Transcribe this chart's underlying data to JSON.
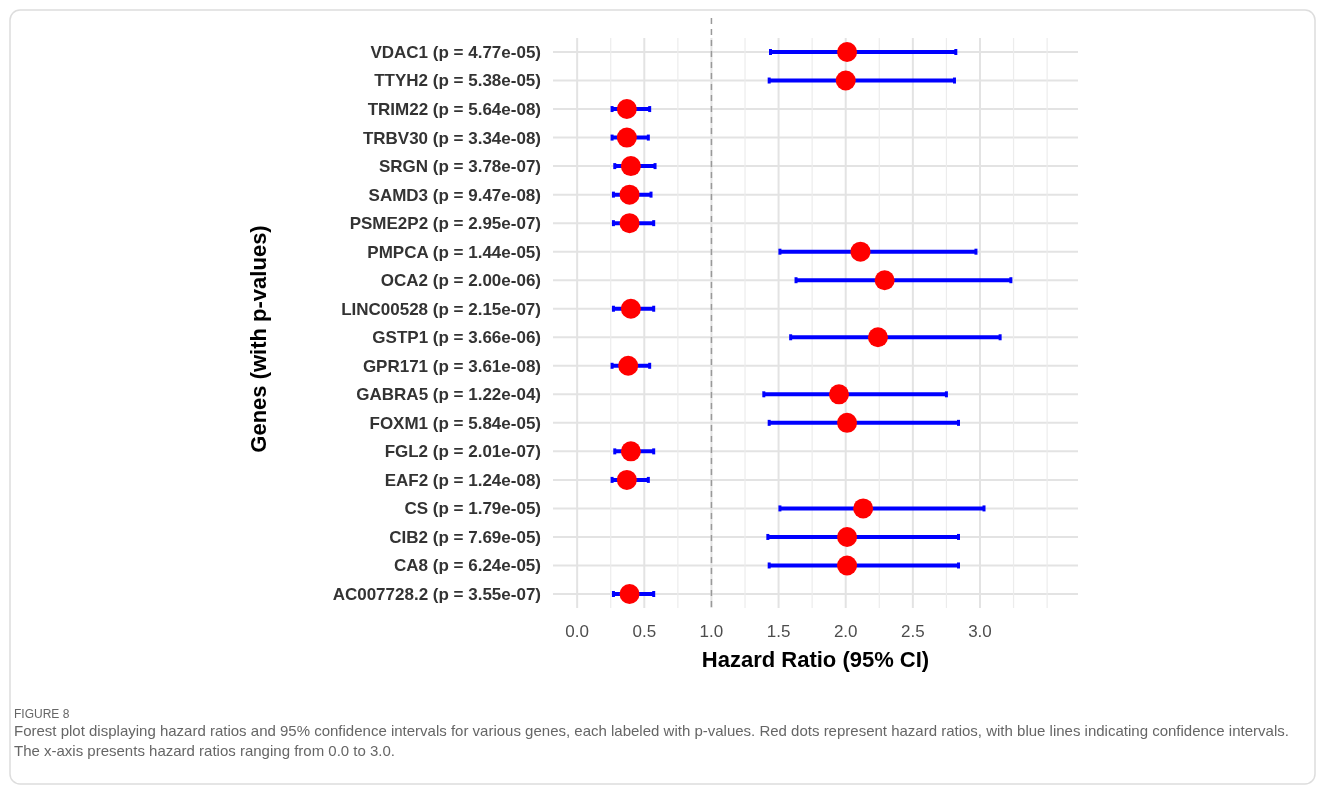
{
  "chart_data": {
    "type": "scatter",
    "orientation": "horizontal",
    "xlabel": "Hazard Ratio (95% CI)",
    "ylabel": "Genes (with p-values)",
    "categories": [
      "VDAC1 (p = 4.77e-05)",
      "TTYH2 (p = 5.38e-05)",
      "TRIM22 (p = 5.64e-08)",
      "TRBV30 (p = 3.34e-08)",
      "SRGN (p = 3.78e-07)",
      "SAMD3 (p = 9.47e-08)",
      "PSME2P2 (p = 2.95e-07)",
      "PMPCA (p = 1.44e-05)",
      "OCA2 (p = 2.00e-06)",
      "LINC00528 (p = 2.15e-07)",
      "GSTP1 (p = 3.66e-06)",
      "GPR171 (p = 3.61e-08)",
      "GABRA5 (p = 1.22e-04)",
      "FOXM1 (p = 5.84e-05)",
      "FGL2 (p = 2.01e-07)",
      "EAF2 (p = 1.24e-08)",
      "CS (p = 1.79e-05)",
      "CIB2 (p = 7.69e-05)",
      "CA8 (p = 6.24e-05)",
      "AC007728.2 (p = 3.55e-07)"
    ],
    "series": [
      {
        "color": "#ff0000",
        "values": [
          2.01,
          2.0,
          0.37,
          0.37,
          0.4,
          0.39,
          0.39,
          2.11,
          2.29,
          0.4,
          2.24,
          0.38,
          1.95,
          2.01,
          0.4,
          0.37,
          2.13,
          2.01,
          2.01,
          0.39
        ],
        "errors": [
          [
            1.44,
            2.82
          ],
          [
            1.43,
            2.81
          ],
          [
            0.26,
            0.54
          ],
          [
            0.26,
            0.53
          ],
          [
            0.28,
            0.58
          ],
          [
            0.27,
            0.55
          ],
          [
            0.27,
            0.57
          ],
          [
            1.51,
            2.97
          ],
          [
            1.63,
            3.23
          ],
          [
            0.27,
            0.57
          ],
          [
            1.59,
            3.15
          ],
          [
            0.26,
            0.54
          ],
          [
            1.39,
            2.75
          ],
          [
            1.43,
            2.84
          ],
          [
            0.28,
            0.57
          ],
          [
            0.26,
            0.53
          ],
          [
            1.51,
            3.03
          ],
          [
            1.42,
            2.84
          ],
          [
            1.43,
            2.84
          ],
          [
            0.27,
            0.57
          ]
        ]
      }
    ],
    "xlim": [
      -0.18,
      3.73
    ],
    "xticks": [
      {
        "value": 0,
        "label": "0.0"
      },
      {
        "value": 0.5,
        "label": "0.5"
      },
      {
        "value": 1,
        "label": "1.0"
      },
      {
        "value": 1.5,
        "label": "1.5"
      },
      {
        "value": 2,
        "label": "2.0"
      },
      {
        "value": 2.5,
        "label": "2.5"
      },
      {
        "value": 3,
        "label": "3.0"
      }
    ],
    "grid": true,
    "marker": "circle",
    "ref_lines": [
      {
        "axis": "x",
        "value": 1,
        "color": "#999999",
        "line_style": "dashed"
      }
    ],
    "annotations": [
      "FIGURE 8",
      "Forest plot displaying hazard ratios and 95% confidence intervals for various genes, each labeled with p-values. Red dots represent hazard ratios, with blue lines indicating confidence intervals. The x-axis presents hazard ratios ranging from 0.0 to 3.0."
    ]
  }
}
